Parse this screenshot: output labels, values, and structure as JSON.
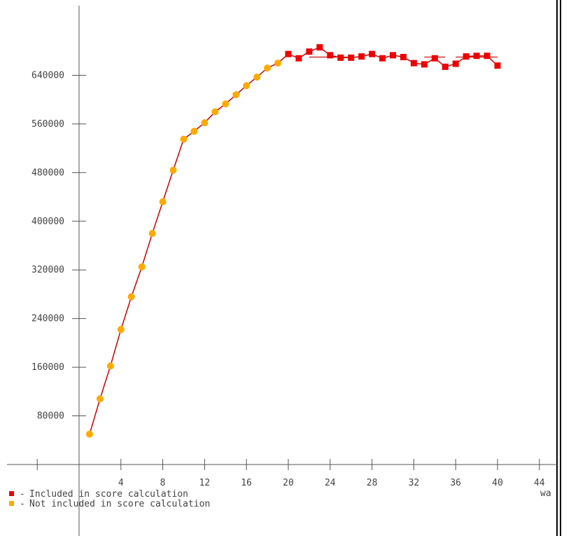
{
  "chart_data": {
    "type": "line",
    "xlabel": "wa",
    "ylabel": "",
    "xlim": [
      -0.5,
      46
    ],
    "ylim": [
      -8000,
      700000
    ],
    "xticks": [
      0,
      4,
      8,
      12,
      16,
      20,
      24,
      28,
      32,
      36,
      40,
      44
    ],
    "xtick_labels": [
      "",
      "4",
      "8",
      "12",
      "16",
      "20",
      "24",
      "28",
      "32",
      "36",
      "40",
      "44"
    ],
    "yticks": [
      80000,
      160000,
      240000,
      320000,
      400000,
      480000,
      560000,
      640000
    ],
    "ytick_labels": [
      "80000",
      "160000",
      "240000",
      "320000",
      "400000",
      "480000",
      "560000",
      "640000"
    ],
    "colors": {
      "line": "#cc0000",
      "included": "#ee0000",
      "not_included": "#ffaa00",
      "axis": "#555555"
    },
    "legend": [
      {
        "name": "Included in score calculation",
        "color": "#ee0000"
      },
      {
        "name": "Not included in score calculation",
        "color": "#ffaa00"
      }
    ],
    "series": [
      {
        "name": "Not included in score calculation",
        "color": "#ffaa00",
        "x": [
          1,
          2,
          3,
          4,
          5,
          6,
          7,
          8,
          9,
          10,
          11,
          12,
          13,
          14,
          15,
          16,
          17,
          18,
          19
        ],
        "y": [
          50000,
          108000,
          162000,
          222000,
          276000,
          325000,
          380000,
          432000,
          484000,
          535000,
          548000,
          562000,
          580000,
          593000,
          608000,
          623000,
          637000,
          652000,
          660000
        ]
      },
      {
        "name": "Included in score calculation",
        "color": "#ee0000",
        "x": [
          20,
          21,
          22,
          23,
          24,
          25,
          26,
          27,
          28,
          29,
          30,
          31,
          32,
          33,
          34,
          35,
          36,
          37,
          38,
          39,
          40
        ],
        "y": [
          675000,
          668000,
          679000,
          686000,
          673000,
          669000,
          669000,
          671000,
          675000,
          668000,
          673000,
          670000,
          660000,
          658000,
          668000,
          654000,
          659000,
          671000,
          672000,
          672000,
          656000
        ]
      }
    ],
    "trend_segments": [
      {
        "x": [
          22,
          26
        ],
        "y": [
          670000,
          670000
        ]
      },
      {
        "x": [
          33,
          35
        ],
        "y": [
          670000,
          670000
        ]
      },
      {
        "x": [
          36,
          40
        ],
        "y": [
          670000,
          670000
        ]
      }
    ]
  }
}
